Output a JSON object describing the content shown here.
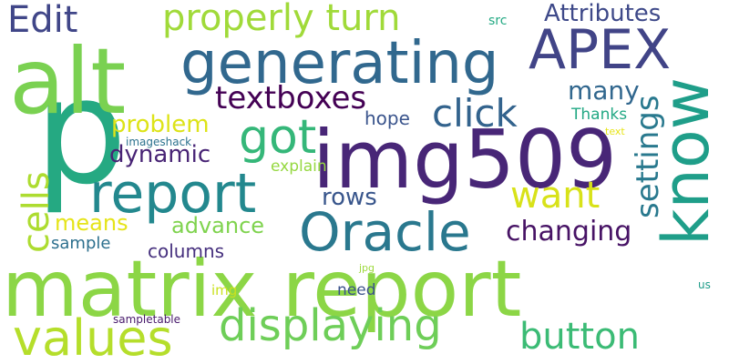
{
  "words": [
    {
      "text": "matrix report",
      "color": "#8cd646"
    },
    {
      "text": "p",
      "color": "#25a982"
    },
    {
      "text": "img509",
      "color": "#482677"
    },
    {
      "text": "alt",
      "color": "#7ad151"
    },
    {
      "text": "generating",
      "color": "#31688e"
    },
    {
      "text": "APEX",
      "color": "#414487"
    },
    {
      "text": "know",
      "color": "#1f9e89"
    },
    {
      "text": "report",
      "color": "#23888e"
    },
    {
      "text": "Oracle",
      "color": "#2a788e"
    },
    {
      "text": "values",
      "color": "#b5de2b"
    },
    {
      "text": "displaying",
      "color": "#6ece58"
    },
    {
      "text": "got",
      "color": "#35b779"
    },
    {
      "text": "properly turn",
      "color": "#a0da39"
    },
    {
      "text": "Edit",
      "color": "#404688"
    },
    {
      "text": "button",
      "color": "#3bbb75"
    },
    {
      "text": "textboxes",
      "color": "#440154"
    },
    {
      "text": "click",
      "color": "#33638d"
    },
    {
      "text": "want",
      "color": "#d8e219"
    },
    {
      "text": "cells",
      "color": "#addc30"
    },
    {
      "text": "settings",
      "color": "#29798e"
    },
    {
      "text": "changing",
      "color": "#471365"
    },
    {
      "text": "Attributes",
      "color": "#3e4989"
    },
    {
      "text": "many",
      "color": "#31678e"
    },
    {
      "text": "problem",
      "color": "#dde318"
    },
    {
      "text": "dynamic",
      "color": "#482475"
    },
    {
      "text": "advance",
      "color": "#7fd34e"
    },
    {
      "text": "rows",
      "color": "#39568c"
    },
    {
      "text": "means",
      "color": "#e5e419"
    },
    {
      "text": "columns",
      "color": "#46307e"
    },
    {
      "text": "hope",
      "color": "#3a548c"
    },
    {
      "text": "sample",
      "color": "#2d708e"
    },
    {
      "text": "explain",
      "color": "#95d840"
    },
    {
      "text": "Thanks",
      "color": "#22a884"
    },
    {
      "text": "need",
      "color": "#3b528b"
    },
    {
      "text": "img",
      "color": "#cae11f"
    },
    {
      "text": "src",
      "color": "#23a983"
    },
    {
      "text": "imageshack",
      "color": "#2c728e"
    },
    {
      "text": "text",
      "color": "#e7e419"
    },
    {
      "text": "jpg",
      "color": "#9dd93b"
    },
    {
      "text": "sampletable",
      "color": "#481a6c"
    },
    {
      "text": "us",
      "color": "#1e9c89"
    }
  ]
}
